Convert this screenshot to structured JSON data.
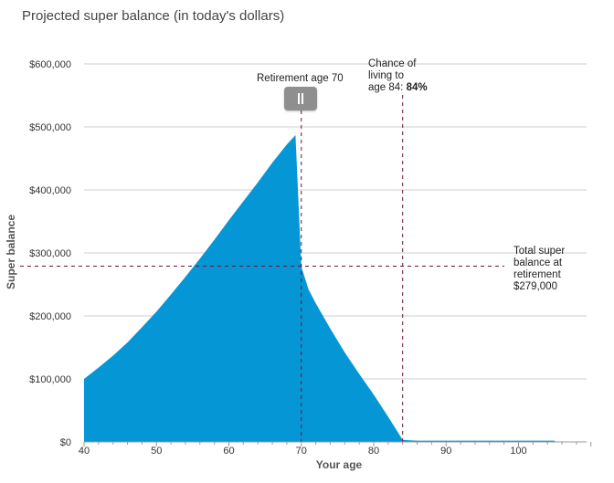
{
  "title": "Projected super balance (in today's dollars)",
  "colors": {
    "area": "#0596d6",
    "grid": "#cccccc",
    "reference": "#6e1430",
    "handle": "#8f8f8f"
  },
  "retirement": {
    "label": "Retirement age 70",
    "age": 70,
    "handle_icon": "pause-grip-icon"
  },
  "chance": {
    "line1": "Chance of",
    "line2": "living to",
    "line3_prefix": "age 84:",
    "value": "84%",
    "age": 84
  },
  "total": {
    "lines": [
      "Total super",
      "balance at",
      "retirement"
    ],
    "amount": "$279,000",
    "value": 279000
  },
  "chart_data": {
    "type": "area",
    "xlabel": "Your age",
    "ylabel": "Super balance",
    "xlim": [
      40,
      110
    ],
    "ylim": [
      0,
      600000
    ],
    "x_ticks": [
      40,
      50,
      60,
      70,
      80,
      90,
      100
    ],
    "x_tick_labels": [
      "40",
      "50",
      "60",
      "70",
      "80",
      "90",
      "100"
    ],
    "y_ticks": [
      0,
      100000,
      200000,
      300000,
      400000,
      500000,
      600000
    ],
    "y_tick_labels": [
      "$0",
      "$100,000",
      "$200,000",
      "$300,000",
      "$400,000",
      "$500,000",
      "$600,000"
    ],
    "grid": "horizontal",
    "series": [
      {
        "x": [
          40,
          42,
          44,
          46,
          48,
          50,
          52,
          54,
          56,
          58,
          60,
          62,
          64,
          66,
          68,
          69.2,
          70,
          71,
          72,
          74,
          76,
          78,
          80,
          82,
          84,
          86,
          90,
          95,
          100,
          105
        ],
        "y": [
          100000,
          118000,
          137000,
          158000,
          182000,
          207000,
          234000,
          262000,
          291000,
          321000,
          352000,
          382000,
          412000,
          443000,
          472000,
          487000,
          278000,
          242000,
          220000,
          180000,
          142000,
          108000,
          75000,
          40000,
          3000,
          2000,
          2000,
          2000,
          2000,
          2000
        ]
      }
    ]
  }
}
